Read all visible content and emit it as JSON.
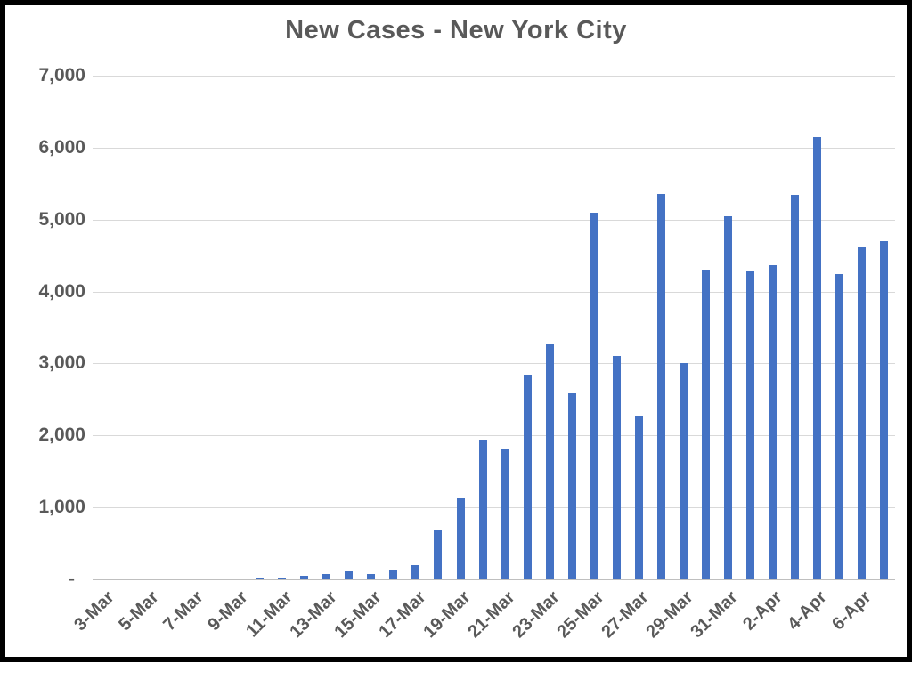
{
  "chart": {
    "title": "New Cases - New York City"
  },
  "colors": {
    "bar": "#4472c4",
    "gridline": "#d9d9d9",
    "axis_line": "#bfbfbf",
    "text": "#595959",
    "border": "#000000"
  },
  "chart_data": {
    "type": "bar",
    "title": "New Cases - New York City",
    "xlabel": "",
    "ylabel": "",
    "ylim": [
      0,
      7000
    ],
    "grid": true,
    "legend": "none",
    "categories": [
      "3-Mar",
      "4-Mar",
      "5-Mar",
      "6-Mar",
      "7-Mar",
      "8-Mar",
      "9-Mar",
      "10-Mar",
      "11-Mar",
      "12-Mar",
      "13-Mar",
      "14-Mar",
      "15-Mar",
      "16-Mar",
      "17-Mar",
      "18-Mar",
      "19-Mar",
      "20-Mar",
      "21-Mar",
      "22-Mar",
      "23-Mar",
      "24-Mar",
      "25-Mar",
      "26-Mar",
      "27-Mar",
      "28-Mar",
      "29-Mar",
      "30-Mar",
      "31-Mar",
      "1-Apr",
      "2-Apr",
      "3-Apr",
      "4-Apr",
      "5-Apr",
      "6-Apr",
      "7-Apr"
    ],
    "values": [
      0,
      0,
      0,
      0,
      0,
      0,
      0,
      25,
      25,
      55,
      75,
      125,
      70,
      140,
      195,
      690,
      1130,
      1940,
      1800,
      2850,
      3260,
      2590,
      5100,
      3100,
      2280,
      5360,
      3000,
      4310,
      5050,
      4290,
      4370,
      5340,
      6150,
      4240,
      4620,
      4700
    ],
    "x_tick_labels": [
      "3-Mar",
      "5-Mar",
      "7-Mar",
      "9-Mar",
      "11-Mar",
      "13-Mar",
      "15-Mar",
      "17-Mar",
      "19-Mar",
      "21-Mar",
      "23-Mar",
      "25-Mar",
      "27-Mar",
      "29-Mar",
      "31-Mar",
      "2-Apr",
      "4-Apr",
      "6-Apr"
    ],
    "x_tick_every": 2,
    "y_ticks": [
      {
        "value": 7000,
        "label": "7,000"
      },
      {
        "value": 6000,
        "label": "6,000"
      },
      {
        "value": 5000,
        "label": "5,000"
      },
      {
        "value": 4000,
        "label": "4,000"
      },
      {
        "value": 3000,
        "label": "3,000"
      },
      {
        "value": 2000,
        "label": "2,000"
      },
      {
        "value": 1000,
        "label": "1,000"
      },
      {
        "value": 0,
        "label": "-"
      }
    ]
  }
}
